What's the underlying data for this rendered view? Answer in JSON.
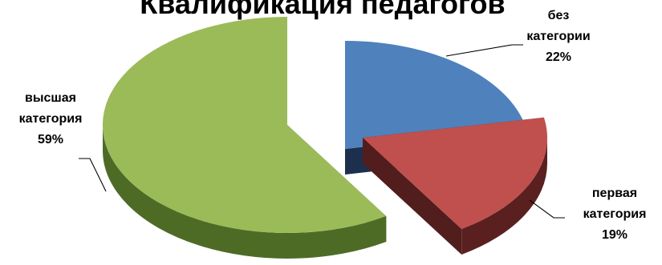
{
  "chart_data": {
    "type": "pie",
    "title": "Квалификация педагогов",
    "three_d": true,
    "exploded": true,
    "slices": [
      {
        "name": "без категории",
        "lines": [
          "без",
          "категории",
          "22%"
        ],
        "value": 22,
        "color": "#4f81bd",
        "side_color": "#1f3556"
      },
      {
        "name": "первая категория",
        "lines": [
          "первая",
          "категория",
          "19%"
        ],
        "value": 19,
        "color": "#c0504d",
        "side_color": "#5a2020"
      },
      {
        "name": "высшая категория",
        "lines": [
          "высшая",
          "категория",
          "59%"
        ],
        "value": 59,
        "color": "#9bbb59",
        "side_color": "#4e6b26"
      }
    ]
  }
}
